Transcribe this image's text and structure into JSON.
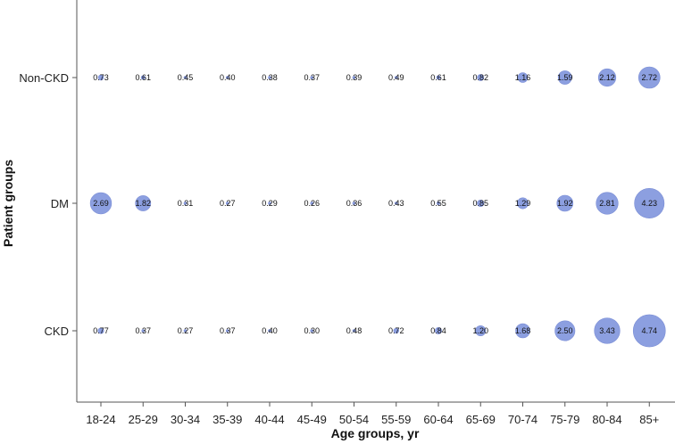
{
  "chart_data": {
    "type": "bubble",
    "xlabel": "Age groups, yr",
    "ylabel": "Patient groups",
    "categories": [
      "18-24",
      "25-29",
      "30-34",
      "35-39",
      "40-44",
      "45-49",
      "50-54",
      "55-59",
      "60-64",
      "65-69",
      "70-74",
      "75-79",
      "80-84",
      "85+"
    ],
    "series": [
      {
        "name": "Non-CKD",
        "values": [
          "0.73",
          "0.61",
          "0.45",
          "0.40",
          "0.38",
          "0.37",
          "0.39",
          "0.49",
          "0.61",
          "0.82",
          "1.16",
          "1.59",
          "2.12",
          "2.72"
        ]
      },
      {
        "name": "DM",
        "values": [
          "2.69",
          "1.82",
          "0.31",
          "0.27",
          "0.29",
          "0.26",
          "0.36",
          "0.43",
          "0.55",
          "0.85",
          "1.29",
          "1.92",
          "2.81",
          "4.23"
        ]
      },
      {
        "name": "CKD",
        "values": [
          "0.77",
          "0.37",
          "0.27",
          "0.37",
          "0.40",
          "0.30",
          "0.48",
          "0.72",
          "0.84",
          "1.20",
          "1.68",
          "2.50",
          "3.43",
          "4.74"
        ]
      }
    ],
    "bubble_color": "#8c9fe0",
    "bubble_stroke": "#7b8ed6",
    "grid": false,
    "legend": "none"
  }
}
